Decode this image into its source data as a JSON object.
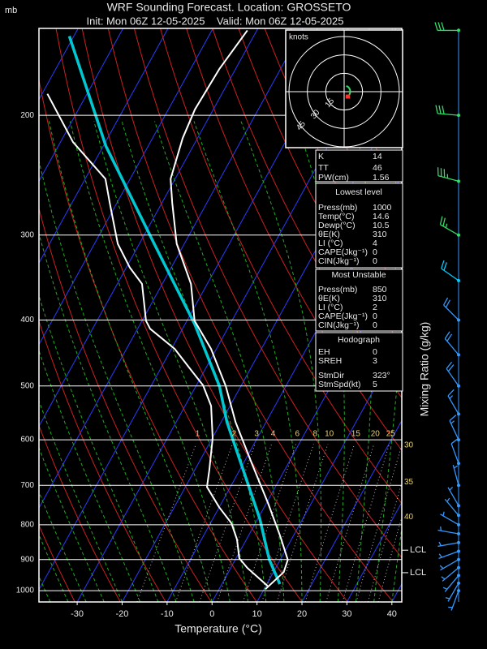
{
  "header": {
    "unit": "mb",
    "title": "WRF Sounding Forecast. Location: GROSSETO",
    "subtitle": "Init: Mon 06Z 12-05-2025    Valid: Mon 06Z 12-05-2025"
  },
  "chart_data": {
    "type": "skewt",
    "xlabel": "Temperature (°C)",
    "y2label": "Mixing Ratio (g/kg)",
    "log_y": true,
    "grid": true,
    "ylim": [
      1039,
      149
    ],
    "yticks": [
      200,
      300,
      400,
      500,
      600,
      700,
      800,
      900,
      1000
    ],
    "xlim": [
      -38.5,
      42.2
    ],
    "xticks": [
      -30,
      -20,
      -10,
      0,
      10,
      20,
      30,
      40
    ],
    "temperature": {
      "color": "#ffffff",
      "p": [
        995,
        939,
        901,
        830,
        743,
        648,
        565,
        500,
        441,
        401,
        354,
        309,
        269,
        248,
        216,
        196,
        171,
        150
      ],
      "t": [
        10.3,
        12.3,
        11.7,
        7.0,
        0.3,
        -8.3,
        -16.8,
        -23.4,
        -31.2,
        -38.3,
        -43.6,
        -51.7,
        -57.7,
        -61.0,
        -63.3,
        -64.1,
        -63.6,
        -62.1
      ]
    },
    "dewpoint": {
      "color": "#ffffff",
      "p": [
        984,
        926,
        896,
        841,
        796,
        754,
        704,
        666,
        597,
        535,
        499,
        473,
        441,
        412,
        401,
        354,
        335,
        309,
        269,
        248,
        219,
        186
      ],
      "t": [
        10.4,
        3.7,
        0.7,
        -2.1,
        -5.3,
        -10.0,
        -15.2,
        -16.7,
        -19.9,
        -24.2,
        -28.5,
        -33.2,
        -39.3,
        -47.2,
        -49.1,
        -54.5,
        -59.2,
        -64.8,
        -71.6,
        -75.5,
        -87.2,
        -98.8
      ]
    },
    "parcel": {
      "color": "#00c8d2",
      "p": [
        978,
        901,
        877,
        785,
        666,
        565,
        500,
        406,
        309,
        222,
        153
      ],
      "t": [
        12.9,
        7.6,
        6.2,
        0.5,
        -9.1,
        -18.7,
        -24.8,
        -37.8,
        -56.7,
        -79.4,
        -101.0
      ]
    },
    "mixing_ratio": {
      "color": "#e6d36b",
      "labels": [
        1,
        2,
        3,
        4,
        6,
        8,
        10,
        15,
        20,
        25,
        30,
        35,
        40
      ]
    },
    "lcl": [
      {
        "label": "LCL",
        "p": 872
      },
      {
        "label": "LCL",
        "p": 941
      }
    ],
    "winds": {
      "p": [
        150,
        200,
        250,
        300,
        350,
        400,
        450,
        500,
        550,
        600,
        650,
        700,
        750,
        775,
        800,
        825,
        850,
        875,
        900,
        925,
        950,
        975,
        1000
      ],
      "dir": [
        270,
        275,
        285,
        300,
        305,
        315,
        320,
        325,
        330,
        335,
        340,
        345,
        330,
        320,
        300,
        280,
        260,
        250,
        240,
        230,
        220,
        210,
        200
      ],
      "speed": [
        30,
        30,
        35,
        25,
        20,
        20,
        20,
        20,
        15,
        15,
        10,
        5,
        5,
        5,
        5,
        5,
        5,
        5,
        5,
        5,
        5,
        5,
        5
      ],
      "colors": [
        "#33dd66",
        "#33dd66",
        "#33dd66",
        "#33dd66",
        "#00ccff",
        "#3399ff",
        "#3399ff",
        "#3399ff",
        "#3399ff",
        "#3399ff",
        "#3399ff",
        "#3399ff",
        "#3399ff",
        "#3399ff",
        "#3399ff",
        "#3399ff",
        "#3399ff",
        "#3399ff",
        "#3399ff",
        "#3399ff",
        "#3399ff",
        "#3399ff",
        "#3399ff"
      ]
    },
    "hodograph": {
      "title": "knots",
      "rings": [
        15,
        30,
        45
      ]
    }
  },
  "indices": [
    {
      "rows": [
        [
          "K",
          14
        ],
        [
          "TT",
          46
        ],
        [
          "PW(cm)",
          1.56
        ]
      ]
    },
    {
      "title": "Lowest level",
      "rows": [
        [
          "Press(mb)",
          1000
        ],
        [
          "Temp(°C)",
          14.6
        ],
        [
          "Dewp(°C)",
          10.5
        ],
        [
          "θE(K)",
          310
        ],
        [
          "LI (°C)",
          4
        ],
        [
          "CAPE(Jkg⁻¹)",
          0
        ],
        [
          "CIN(Jkg⁻¹)",
          0
        ]
      ]
    },
    {
      "title": "Most Unstable",
      "rows": [
        [
          "Press(mb)",
          850
        ],
        [
          "θE(K)",
          310
        ],
        [
          "LI (°C)",
          2
        ],
        [
          "CAPE(Jkg⁻¹)",
          0
        ],
        [
          "CIN(Jkg⁻¹)",
          0
        ]
      ]
    },
    {
      "title": "Hodograph",
      "rows": [
        [
          "EH",
          0
        ],
        [
          "SREH",
          3
        ],
        [
          "StmDir",
          {
            "value": 323,
            "label": "323°"
          }
        ],
        [
          "StmSpd(kt)",
          5
        ]
      ]
    }
  ]
}
